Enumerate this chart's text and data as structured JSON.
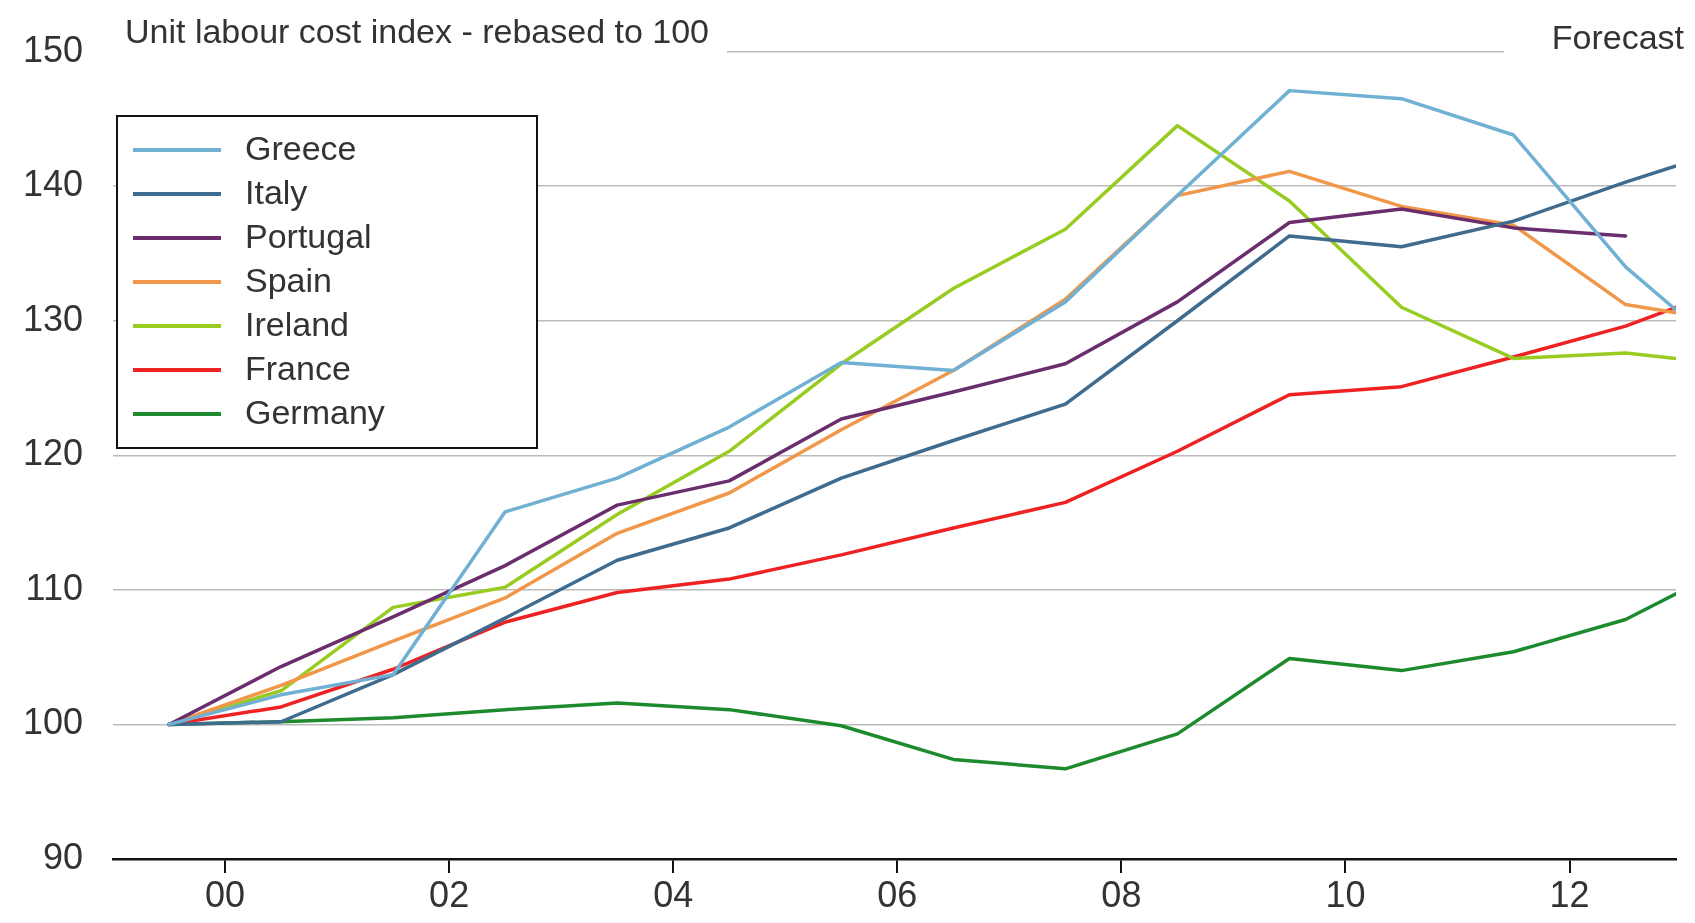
{
  "chart_data": {
    "type": "line",
    "title": "Unit labour cost index - rebased to 100",
    "annotations": [
      "Forecast"
    ],
    "x": [
      1999.5,
      2000.5,
      2001.5,
      2002.5,
      2003.5,
      2004.5,
      2005.5,
      2006.5,
      2007.5,
      2008.5,
      2009.5,
      2010.5,
      2011.5,
      2012.5,
      2012.95
    ],
    "xlim": [
      1999,
      2012.95
    ],
    "xticks": [
      {
        "value": 2000,
        "label": "00"
      },
      {
        "value": 2002,
        "label": "02"
      },
      {
        "value": 2004,
        "label": "04"
      },
      {
        "value": 2006,
        "label": "06"
      },
      {
        "value": 2008,
        "label": "08"
      },
      {
        "value": 2010,
        "label": "10"
      },
      {
        "value": 2012,
        "label": "12"
      }
    ],
    "ylim": [
      90,
      150
    ],
    "yticks": [
      90,
      100,
      110,
      120,
      130,
      140,
      150
    ],
    "grid": "y",
    "legend": "top left",
    "marker": "none",
    "line_style": "solid",
    "series": [
      {
        "name": "Greece",
        "color": "#6fb0d3",
        "values": [
          100,
          102.2,
          103.7,
          115.8,
          118.3,
          122.1,
          126.9,
          126.3,
          131.4,
          139.3,
          147.1,
          146.5,
          143.8,
          134.0,
          130.8
        ]
      },
      {
        "name": "Italy",
        "color": "#3e6b8e",
        "values": [
          100,
          100.2,
          103.7,
          107.9,
          112.2,
          114.6,
          118.3,
          121.1,
          123.8,
          130.0,
          136.3,
          135.5,
          137.4,
          140.3,
          141.5
        ]
      },
      {
        "name": "Portugal",
        "color": "#6a2e6e",
        "values": [
          100,
          104.3,
          108.0,
          111.8,
          116.3,
          118.1,
          122.7,
          124.7,
          126.8,
          131.4,
          137.3,
          138.3,
          136.9,
          136.3,
          null
        ]
      },
      {
        "name": "Spain",
        "color": "#f0974a",
        "values": [
          100,
          102.9,
          106.2,
          109.4,
          114.2,
          117.2,
          121.9,
          126.3,
          131.6,
          139.3,
          141.1,
          138.5,
          137.1,
          131.2,
          130.6
        ]
      },
      {
        "name": "Ireland",
        "color": "#99cc22",
        "values": [
          100,
          102.5,
          108.7,
          110.2,
          115.6,
          120.3,
          126.8,
          132.4,
          136.8,
          144.5,
          138.9,
          131.0,
          127.2,
          127.6,
          127.2
        ]
      },
      {
        "name": "France",
        "color": "#ee2222",
        "values": [
          100,
          101.3,
          104.1,
          107.6,
          109.8,
          110.8,
          112.6,
          114.6,
          116.5,
          120.3,
          124.5,
          125.1,
          127.3,
          129.6,
          131.0
        ]
      },
      {
        "name": "Germany",
        "color": "#1e8a2e",
        "values": [
          100,
          100.2,
          100.5,
          101.1,
          101.6,
          101.1,
          99.9,
          97.4,
          96.7,
          99.3,
          104.9,
          104.0,
          105.4,
          107.8,
          109.7
        ]
      }
    ]
  }
}
